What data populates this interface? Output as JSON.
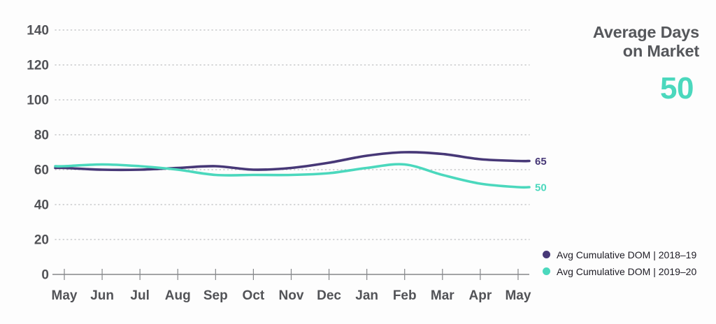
{
  "header": {
    "title_lines": [
      "Average Days",
      "on Market"
    ],
    "highlight_value": "50",
    "highlight_color": "#4bd8bd",
    "title_color": "#55575b"
  },
  "legend": {
    "position": "bottom-right",
    "items": [
      {
        "label": "Avg Cumulative DOM  |  2018–19",
        "color": "#473877"
      },
      {
        "label": "Avg Cumulative DOM  |  2019–20",
        "color": "#4bd8bd"
      }
    ]
  },
  "chart_data": {
    "type": "line",
    "title": "Average Days on Market",
    "xlabel": "",
    "ylabel": "",
    "categories": [
      "May",
      "Jun",
      "Jul",
      "Aug",
      "Sep",
      "Oct",
      "Nov",
      "Dec",
      "Jan",
      "Feb",
      "Mar",
      "Apr",
      "May"
    ],
    "y_ticks": [
      0,
      20,
      40,
      60,
      80,
      100,
      120,
      140
    ],
    "ylim": [
      0,
      140
    ],
    "grid": "horizontal-dotted",
    "legend_position": "bottom-right",
    "series": [
      {
        "name": "Avg Cumulative DOM | 2018–19",
        "color": "#473877",
        "values": [
          61,
          60,
          60,
          61,
          62,
          60,
          61,
          64,
          68,
          70,
          69,
          66,
          65
        ],
        "end_label": "65"
      },
      {
        "name": "Avg Cumulative DOM | 2019–20",
        "color": "#4bd8bd",
        "values": [
          62,
          63,
          62,
          60,
          57,
          57,
          57,
          58,
          61,
          63,
          57,
          52,
          50
        ],
        "end_label": "50"
      }
    ],
    "colors": {
      "axis_line": "#85878a",
      "tick": "#85878a",
      "grid_dot": "#c7c8ca",
      "axis_label": "#525357"
    }
  }
}
